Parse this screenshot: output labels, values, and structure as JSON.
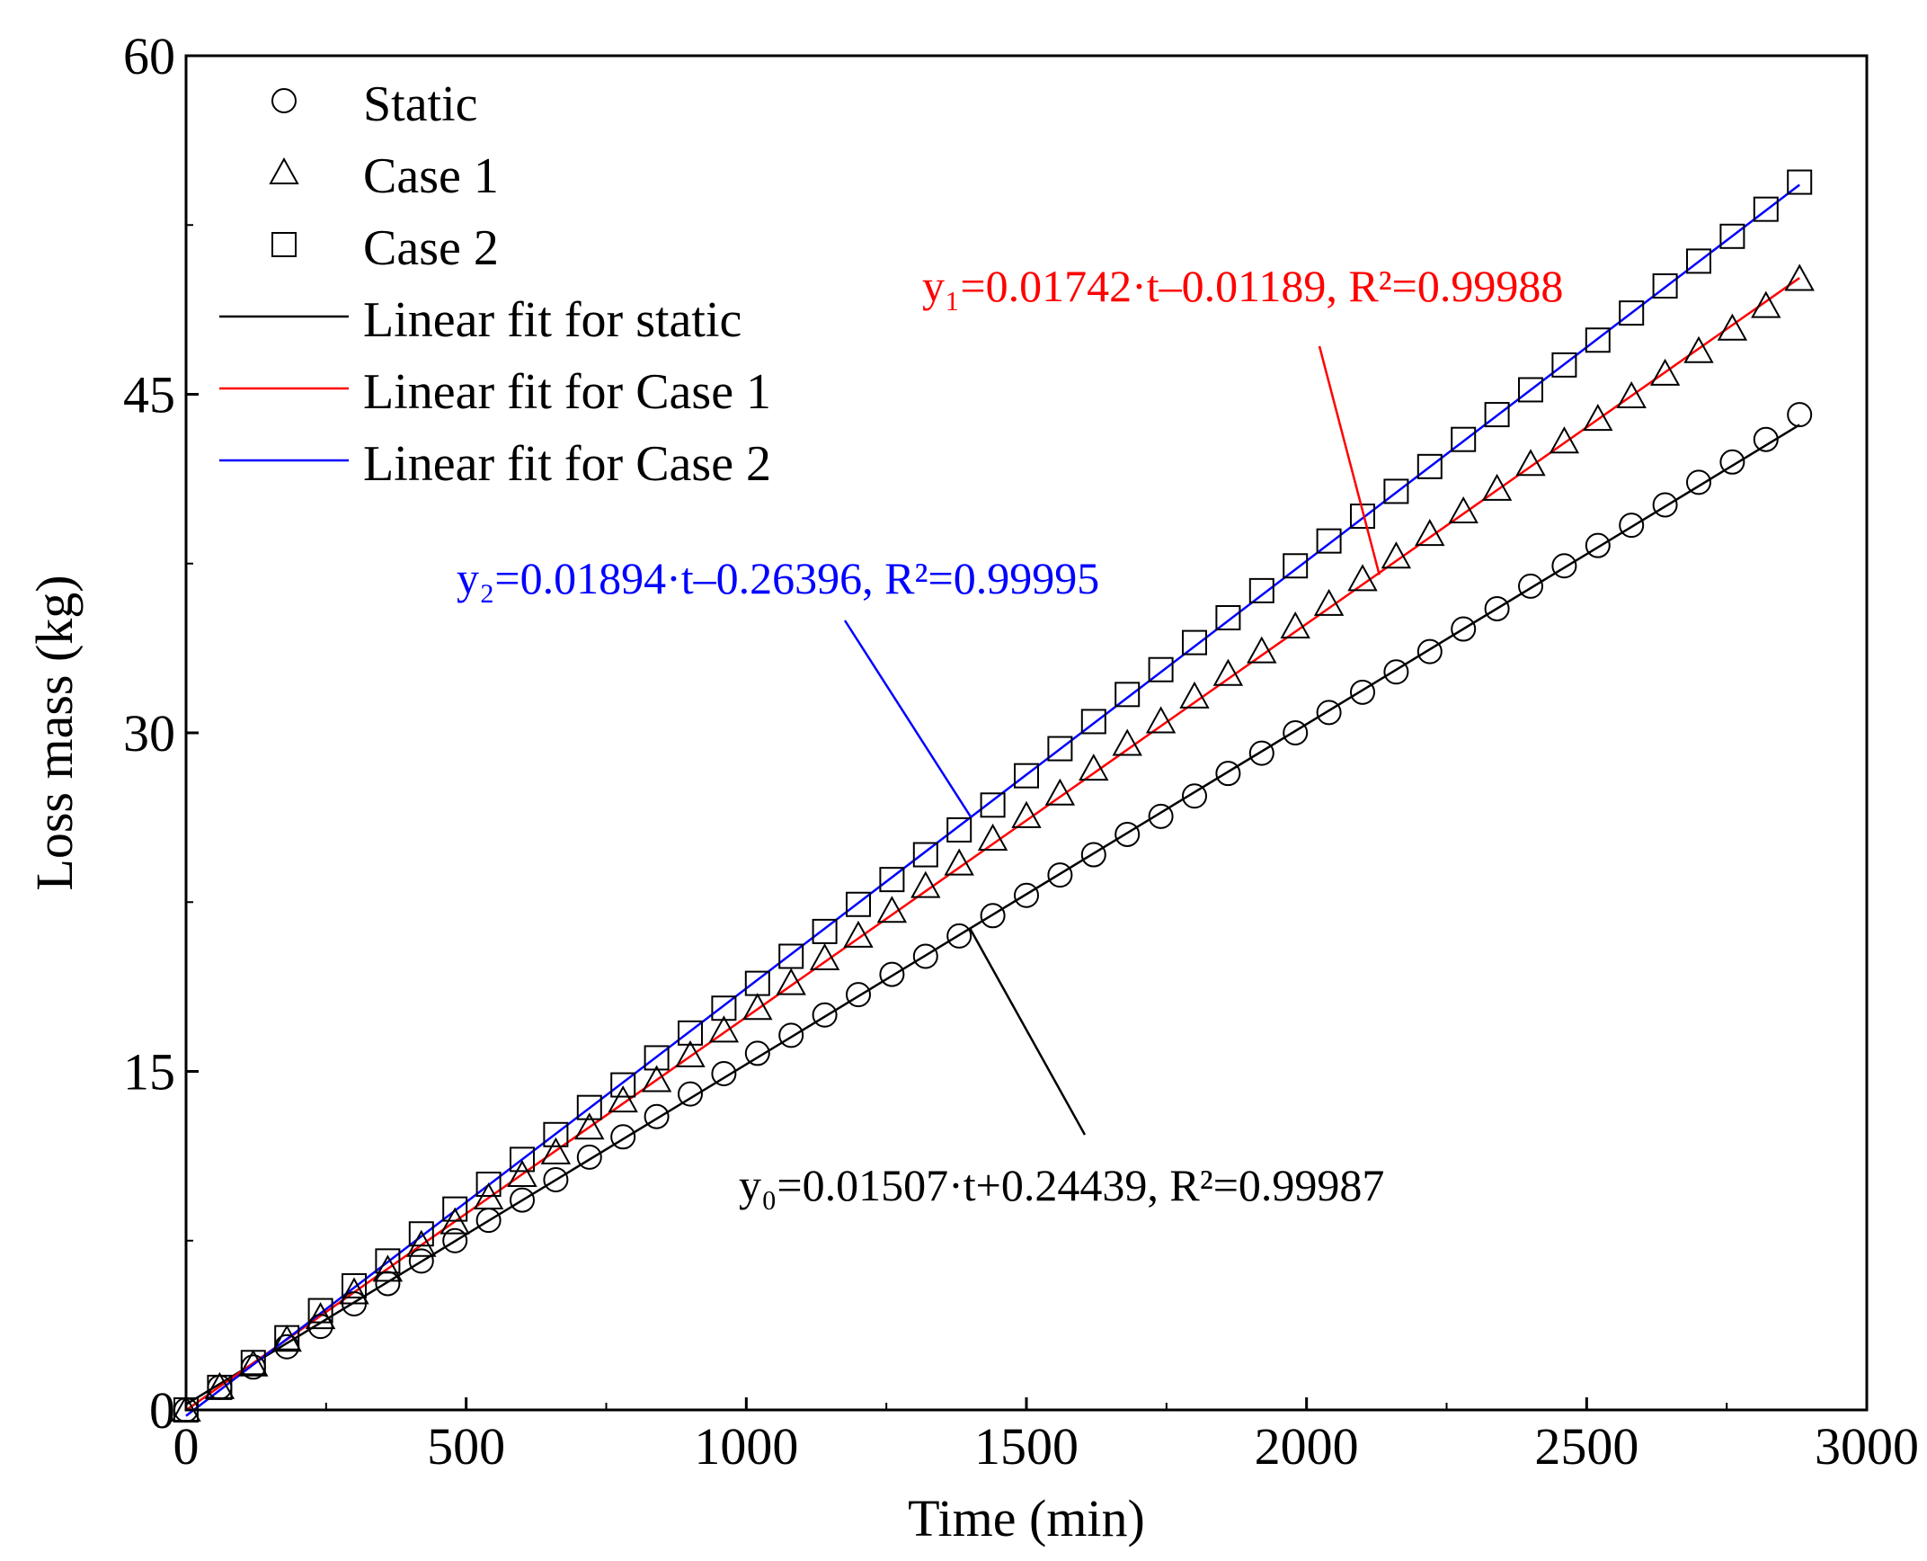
{
  "chart_data": {
    "type": "scatter",
    "xlabel": "Time (min)",
    "ylabel": "Loss mass (kg)",
    "xlim": [
      0,
      3000
    ],
    "ylim": [
      0,
      60
    ],
    "xticks": [
      0,
      500,
      1000,
      1500,
      2000,
      2500,
      3000
    ],
    "yticks": [
      0,
      15,
      30,
      45,
      60
    ],
    "xtick_labels": [
      "0",
      "500",
      "1000",
      "1500",
      "2000",
      "2500",
      "3000"
    ],
    "ytick_labels": [
      "0",
      "15",
      "30",
      "45",
      "60"
    ],
    "grid": false,
    "legend_position": "top-left",
    "series": [
      {
        "name": "Static",
        "marker": "circle",
        "slope": 0.01507,
        "intercept": 0.24439,
        "x": [
          0,
          60,
          120,
          180,
          240,
          300,
          360,
          420,
          480,
          540,
          600,
          660,
          720,
          780,
          840,
          900,
          960,
          1020,
          1080,
          1140,
          1200,
          1260,
          1320,
          1380,
          1440,
          1500,
          1560,
          1620,
          1680,
          1740,
          1800,
          1860,
          1920,
          1980,
          2040,
          2100,
          2160,
          2220,
          2280,
          2340,
          2400,
          2460,
          2520,
          2580,
          2640,
          2700,
          2760,
          2820,
          2880
        ],
        "y": [
          0,
          1.0,
          1.9,
          2.8,
          3.7,
          4.7,
          5.6,
          6.6,
          7.5,
          8.4,
          9.3,
          10.2,
          11.2,
          12.1,
          13.0,
          14.0,
          14.9,
          15.8,
          16.6,
          17.5,
          18.4,
          19.3,
          20.1,
          21.0,
          21.9,
          22.8,
          23.7,
          24.6,
          25.5,
          26.3,
          27.2,
          28.2,
          29.1,
          30.0,
          30.9,
          31.8,
          32.7,
          33.6,
          34.6,
          35.5,
          36.5,
          37.4,
          38.3,
          39.2,
          40.1,
          41.1,
          42.0,
          43.0,
          44.1
        ]
      },
      {
        "name": "Case 1",
        "marker": "triangle",
        "slope": 0.01742,
        "intercept": -0.01189,
        "x": [
          0,
          60,
          120,
          180,
          240,
          300,
          360,
          420,
          480,
          540,
          600,
          660,
          720,
          780,
          840,
          900,
          960,
          1020,
          1080,
          1140,
          1200,
          1260,
          1320,
          1380,
          1440,
          1500,
          1560,
          1620,
          1680,
          1740,
          1800,
          1860,
          1920,
          1980,
          2040,
          2100,
          2160,
          2220,
          2280,
          2340,
          2400,
          2460,
          2520,
          2580,
          2640,
          2700,
          2760,
          2820,
          2880
        ],
        "y": [
          0,
          1.0,
          2.0,
          3.1,
          4.1,
          5.2,
          6.2,
          7.3,
          8.3,
          9.4,
          10.4,
          11.4,
          12.5,
          13.7,
          14.6,
          15.7,
          16.8,
          17.8,
          18.9,
          20.0,
          21.0,
          22.1,
          23.2,
          24.2,
          25.3,
          26.3,
          27.3,
          28.4,
          29.5,
          30.5,
          31.6,
          32.6,
          33.6,
          34.7,
          35.7,
          36.8,
          37.8,
          38.8,
          39.8,
          40.8,
          41.9,
          42.9,
          43.9,
          44.9,
          45.9,
          46.9,
          47.9,
          48.9,
          50.1
        ]
      },
      {
        "name": "Case 2",
        "marker": "square",
        "slope": 0.01894,
        "intercept": -0.26396,
        "x": [
          0,
          60,
          120,
          180,
          240,
          300,
          360,
          420,
          480,
          540,
          600,
          660,
          720,
          780,
          840,
          900,
          960,
          1020,
          1080,
          1140,
          1200,
          1260,
          1320,
          1380,
          1440,
          1500,
          1560,
          1620,
          1680,
          1740,
          1800,
          1860,
          1920,
          1980,
          2040,
          2100,
          2160,
          2220,
          2280,
          2340,
          2400,
          2460,
          2520,
          2580,
          2640,
          2700,
          2760,
          2820,
          2880
        ],
        "y": [
          0,
          1.0,
          2.1,
          3.2,
          4.4,
          5.5,
          6.6,
          7.8,
          8.9,
          10.0,
          11.1,
          12.2,
          13.4,
          14.4,
          15.6,
          16.7,
          17.8,
          18.9,
          20.1,
          21.2,
          22.4,
          23.5,
          24.6,
          25.7,
          26.8,
          28.1,
          29.3,
          30.5,
          31.7,
          32.8,
          34.0,
          35.1,
          36.3,
          37.4,
          38.5,
          39.6,
          40.7,
          41.8,
          43.0,
          44.1,
          45.2,
          46.3,
          47.4,
          48.6,
          49.8,
          50.9,
          52.0,
          53.2,
          54.4
        ]
      }
    ],
    "fits": [
      {
        "name": "Linear fit for static",
        "color": "#000000",
        "slope": 0.01507,
        "intercept": 0.24439,
        "x_range": [
          0,
          2880
        ],
        "equation_label": "y₀=0.01507·t+0.24439, R²=0.99987",
        "r2": 0.99987
      },
      {
        "name": "Linear fit for Case 1",
        "color": "#ff0000",
        "slope": 0.01742,
        "intercept": -0.01189,
        "x_range": [
          0,
          2880
        ],
        "equation_label": "y₁=0.01742·t–0.01189, R²=0.99988",
        "r2": 0.99988
      },
      {
        "name": "Linear fit for Case 2",
        "color": "#0000ff",
        "slope": 0.01894,
        "intercept": -0.26396,
        "x_range": [
          0,
          2880
        ],
        "equation_label": "y₂=0.01894·t–0.26396, R²=0.99995",
        "r2": 0.99995
      }
    ],
    "annotations": [
      {
        "fit": "Linear fit for static",
        "text": "y₀=0.01507·t+0.24439, R²=0.99987",
        "points_to": [
          1400,
          21.3
        ]
      },
      {
        "fit": "Linear fit for Case 1",
        "text": "y₁=0.01742·t–0.01189, R²=0.99988",
        "points_to": [
          2130,
          37.0
        ]
      },
      {
        "fit": "Linear fit for Case 2",
        "text": "y₂=0.01894·t–0.26396, R²=0.99995",
        "points_to": [
          1400,
          26.3
        ]
      }
    ]
  }
}
